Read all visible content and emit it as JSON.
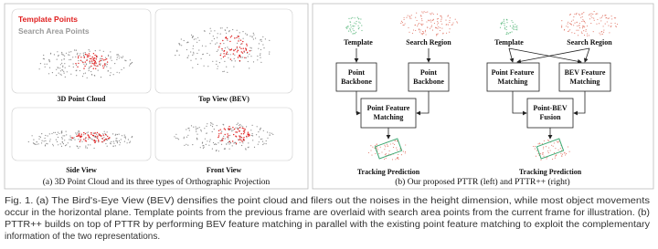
{
  "left_panel": {
    "legend": [
      "Template Points",
      "Search Area Points"
    ],
    "views": [
      "3D Point Cloud",
      "Top View (BEV)",
      "Side View",
      "Front View"
    ],
    "caption": "(a) 3D Point Cloud and its three types of Orthographic Projection"
  },
  "right_panel": {
    "pttr": {
      "inputs": [
        "Template",
        "Search Region"
      ],
      "backbones": [
        [
          "Point",
          "Backbone"
        ],
        [
          "Point",
          "Backbone"
        ]
      ],
      "matching": [
        "Point Feature",
        "Matching"
      ],
      "output": "Tracking Prediction"
    },
    "pttrpp": {
      "inputs": [
        "Template",
        "Search Region"
      ],
      "matching": [
        [
          "Point Feature",
          "Matching"
        ],
        [
          "BEV Feature",
          "Matching"
        ]
      ],
      "fusion": [
        "Point-BEV",
        "Fusion"
      ],
      "output": "Tracking Prediction"
    },
    "caption": "(b) Our proposed PTTR (left) and PTTR++ (right)"
  },
  "caption_lines": [
    "Fig. 1. (a) The Bird's-Eye View (BEV) densifies the point cloud and filers out the noises in the height dimension, while most object movements",
    "occur in the horizontal plane. Template points from the previous frame are overlaid with search area points from the current frame for illustration. (b)",
    "PTTR++ builds on top of PTTR by performing BEV feature matching in parallel with the existing point feature matching to exploit the complementary",
    "information of the two representations."
  ]
}
